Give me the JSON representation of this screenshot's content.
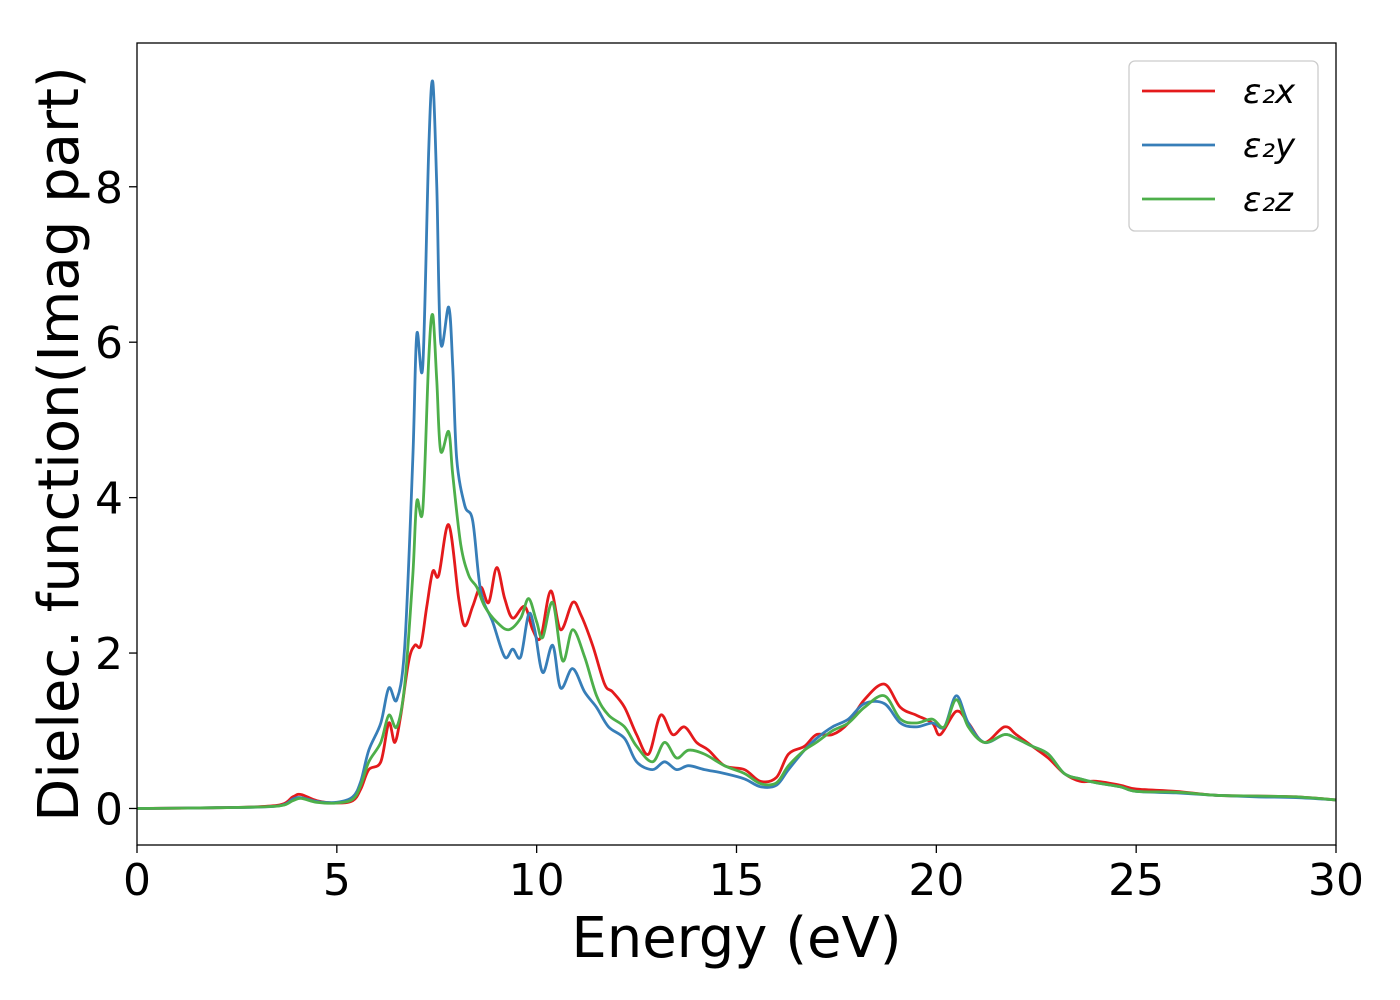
{
  "chart_data": {
    "type": "line",
    "xlabel": "Energy (eV)",
    "ylabel": "Dielec. function(Imag part)",
    "xlim": [
      0,
      30
    ],
    "ylim": [
      -0.47,
      9.85
    ],
    "xticks": [
      0,
      5,
      10,
      15,
      20,
      25,
      30
    ],
    "yticks": [
      0,
      2,
      4,
      6,
      8
    ],
    "grid": false,
    "legend_position": "top-right",
    "series": [
      {
        "name": "ε₂x",
        "color": "#e41a1c",
        "points": [
          [
            0,
            0
          ],
          [
            2,
            0.01
          ],
          [
            3.5,
            0.04
          ],
          [
            3.9,
            0.15
          ],
          [
            4.1,
            0.18
          ],
          [
            4.5,
            0.1
          ],
          [
            5,
            0.07
          ],
          [
            5.4,
            0.1
          ],
          [
            5.6,
            0.25
          ],
          [
            5.8,
            0.5
          ],
          [
            6.1,
            0.6
          ],
          [
            6.3,
            1.1
          ],
          [
            6.45,
            0.85
          ],
          [
            6.6,
            1.2
          ],
          [
            6.8,
            1.9
          ],
          [
            6.95,
            2.1
          ],
          [
            7.1,
            2.1
          ],
          [
            7.25,
            2.6
          ],
          [
            7.4,
            3.05
          ],
          [
            7.55,
            3.0
          ],
          [
            7.8,
            3.65
          ],
          [
            8.05,
            2.7
          ],
          [
            8.2,
            2.35
          ],
          [
            8.4,
            2.6
          ],
          [
            8.6,
            2.85
          ],
          [
            8.8,
            2.65
          ],
          [
            9.0,
            3.1
          ],
          [
            9.2,
            2.7
          ],
          [
            9.4,
            2.45
          ],
          [
            9.7,
            2.6
          ],
          [
            9.9,
            2.3
          ],
          [
            10.1,
            2.2
          ],
          [
            10.35,
            2.8
          ],
          [
            10.6,
            2.3
          ],
          [
            10.9,
            2.65
          ],
          [
            11.1,
            2.5
          ],
          [
            11.4,
            2.1
          ],
          [
            11.7,
            1.6
          ],
          [
            11.9,
            1.5
          ],
          [
            12.2,
            1.3
          ],
          [
            12.5,
            0.95
          ],
          [
            12.8,
            0.7
          ],
          [
            13.1,
            1.2
          ],
          [
            13.4,
            0.95
          ],
          [
            13.7,
            1.05
          ],
          [
            14.0,
            0.85
          ],
          [
            14.3,
            0.75
          ],
          [
            14.7,
            0.55
          ],
          [
            15.2,
            0.5
          ],
          [
            15.6,
            0.35
          ],
          [
            16.0,
            0.4
          ],
          [
            16.3,
            0.7
          ],
          [
            16.7,
            0.8
          ],
          [
            17.0,
            0.95
          ],
          [
            17.4,
            0.95
          ],
          [
            17.8,
            1.1
          ],
          [
            18.2,
            1.4
          ],
          [
            18.7,
            1.6
          ],
          [
            19.1,
            1.3
          ],
          [
            19.5,
            1.2
          ],
          [
            19.9,
            1.1
          ],
          [
            20.1,
            0.95
          ],
          [
            20.5,
            1.25
          ],
          [
            20.8,
            1.1
          ],
          [
            21.2,
            0.85
          ],
          [
            21.7,
            1.05
          ],
          [
            22.0,
            0.95
          ],
          [
            22.4,
            0.8
          ],
          [
            22.8,
            0.65
          ],
          [
            23.2,
            0.45
          ],
          [
            23.6,
            0.35
          ],
          [
            24.0,
            0.35
          ],
          [
            24.6,
            0.3
          ],
          [
            25.0,
            0.25
          ],
          [
            26.0,
            0.22
          ],
          [
            27.0,
            0.17
          ],
          [
            28.0,
            0.16
          ],
          [
            29.0,
            0.15
          ],
          [
            30,
            0.11
          ]
        ]
      },
      {
        "name": "ε₂y",
        "color": "#377eb8",
        "points": [
          [
            0,
            0
          ],
          [
            2,
            0.01
          ],
          [
            3.5,
            0.03
          ],
          [
            3.9,
            0.12
          ],
          [
            4.1,
            0.14
          ],
          [
            4.5,
            0.09
          ],
          [
            5,
            0.08
          ],
          [
            5.4,
            0.15
          ],
          [
            5.6,
            0.35
          ],
          [
            5.8,
            0.75
          ],
          [
            6.1,
            1.1
          ],
          [
            6.3,
            1.55
          ],
          [
            6.5,
            1.4
          ],
          [
            6.7,
            2.1
          ],
          [
            6.9,
            4.5
          ],
          [
            7.0,
            6.1
          ],
          [
            7.15,
            5.7
          ],
          [
            7.3,
            8.5
          ],
          [
            7.4,
            9.35
          ],
          [
            7.5,
            8.0
          ],
          [
            7.6,
            6.0
          ],
          [
            7.8,
            6.45
          ],
          [
            7.9,
            5.7
          ],
          [
            8.0,
            4.5
          ],
          [
            8.2,
            3.9
          ],
          [
            8.4,
            3.7
          ],
          [
            8.6,
            2.8
          ],
          [
            8.9,
            2.4
          ],
          [
            9.2,
            1.95
          ],
          [
            9.4,
            2.05
          ],
          [
            9.6,
            1.95
          ],
          [
            9.8,
            2.5
          ],
          [
            9.95,
            2.3
          ],
          [
            10.15,
            1.75
          ],
          [
            10.4,
            2.1
          ],
          [
            10.6,
            1.55
          ],
          [
            10.9,
            1.8
          ],
          [
            11.2,
            1.5
          ],
          [
            11.5,
            1.3
          ],
          [
            11.8,
            1.05
          ],
          [
            12.2,
            0.9
          ],
          [
            12.5,
            0.6
          ],
          [
            12.9,
            0.5
          ],
          [
            13.2,
            0.6
          ],
          [
            13.5,
            0.5
          ],
          [
            13.8,
            0.55
          ],
          [
            14.2,
            0.5
          ],
          [
            14.7,
            0.45
          ],
          [
            15.2,
            0.38
          ],
          [
            15.6,
            0.28
          ],
          [
            16.0,
            0.3
          ],
          [
            16.3,
            0.5
          ],
          [
            16.7,
            0.75
          ],
          [
            17.0,
            0.9
          ],
          [
            17.4,
            1.05
          ],
          [
            17.8,
            1.15
          ],
          [
            18.2,
            1.35
          ],
          [
            18.7,
            1.35
          ],
          [
            19.1,
            1.1
          ],
          [
            19.5,
            1.05
          ],
          [
            19.9,
            1.1
          ],
          [
            20.2,
            1.05
          ],
          [
            20.5,
            1.45
          ],
          [
            20.8,
            1.1
          ],
          [
            21.2,
            0.85
          ],
          [
            21.7,
            0.95
          ],
          [
            22.0,
            0.9
          ],
          [
            22.4,
            0.8
          ],
          [
            22.8,
            0.7
          ],
          [
            23.2,
            0.45
          ],
          [
            23.6,
            0.38
          ],
          [
            24.0,
            0.33
          ],
          [
            24.6,
            0.28
          ],
          [
            25.0,
            0.22
          ],
          [
            26.0,
            0.2
          ],
          [
            27.0,
            0.17
          ],
          [
            28.0,
            0.15
          ],
          [
            29.0,
            0.14
          ],
          [
            30,
            0.11
          ]
        ]
      },
      {
        "name": "ε₂z",
        "color": "#4daf4a",
        "points": [
          [
            0,
            0
          ],
          [
            2,
            0.01
          ],
          [
            3.5,
            0.03
          ],
          [
            3.9,
            0.1
          ],
          [
            4.1,
            0.13
          ],
          [
            4.5,
            0.08
          ],
          [
            5,
            0.07
          ],
          [
            5.4,
            0.12
          ],
          [
            5.6,
            0.3
          ],
          [
            5.8,
            0.6
          ],
          [
            6.1,
            0.85
          ],
          [
            6.3,
            1.2
          ],
          [
            6.5,
            1.05
          ],
          [
            6.7,
            1.6
          ],
          [
            6.9,
            3.0
          ],
          [
            7.0,
            3.95
          ],
          [
            7.15,
            3.85
          ],
          [
            7.3,
            5.8
          ],
          [
            7.4,
            6.35
          ],
          [
            7.5,
            5.5
          ],
          [
            7.6,
            4.6
          ],
          [
            7.8,
            4.85
          ],
          [
            7.9,
            4.3
          ],
          [
            8.1,
            3.4
          ],
          [
            8.3,
            3.0
          ],
          [
            8.5,
            2.85
          ],
          [
            8.7,
            2.6
          ],
          [
            9.0,
            2.4
          ],
          [
            9.3,
            2.3
          ],
          [
            9.6,
            2.45
          ],
          [
            9.8,
            2.7
          ],
          [
            10.0,
            2.4
          ],
          [
            10.15,
            2.2
          ],
          [
            10.4,
            2.65
          ],
          [
            10.65,
            1.9
          ],
          [
            10.9,
            2.3
          ],
          [
            11.2,
            1.95
          ],
          [
            11.5,
            1.45
          ],
          [
            11.8,
            1.2
          ],
          [
            12.2,
            1.05
          ],
          [
            12.5,
            0.8
          ],
          [
            12.9,
            0.6
          ],
          [
            13.2,
            0.85
          ],
          [
            13.5,
            0.65
          ],
          [
            13.8,
            0.75
          ],
          [
            14.2,
            0.7
          ],
          [
            14.7,
            0.55
          ],
          [
            15.2,
            0.45
          ],
          [
            15.6,
            0.32
          ],
          [
            16.0,
            0.33
          ],
          [
            16.3,
            0.55
          ],
          [
            16.7,
            0.75
          ],
          [
            17.0,
            0.85
          ],
          [
            17.4,
            1.0
          ],
          [
            17.8,
            1.1
          ],
          [
            18.2,
            1.3
          ],
          [
            18.7,
            1.45
          ],
          [
            19.1,
            1.15
          ],
          [
            19.5,
            1.1
          ],
          [
            19.9,
            1.15
          ],
          [
            20.2,
            1.05
          ],
          [
            20.5,
            1.4
          ],
          [
            20.8,
            1.05
          ],
          [
            21.2,
            0.85
          ],
          [
            21.7,
            0.95
          ],
          [
            22.0,
            0.9
          ],
          [
            22.4,
            0.8
          ],
          [
            22.8,
            0.7
          ],
          [
            23.2,
            0.45
          ],
          [
            23.6,
            0.38
          ],
          [
            24.0,
            0.33
          ],
          [
            24.6,
            0.28
          ],
          [
            25.0,
            0.22
          ],
          [
            26.0,
            0.21
          ],
          [
            27.0,
            0.17
          ],
          [
            28.0,
            0.16
          ],
          [
            29.0,
            0.15
          ],
          [
            30,
            0.11
          ]
        ]
      }
    ]
  }
}
